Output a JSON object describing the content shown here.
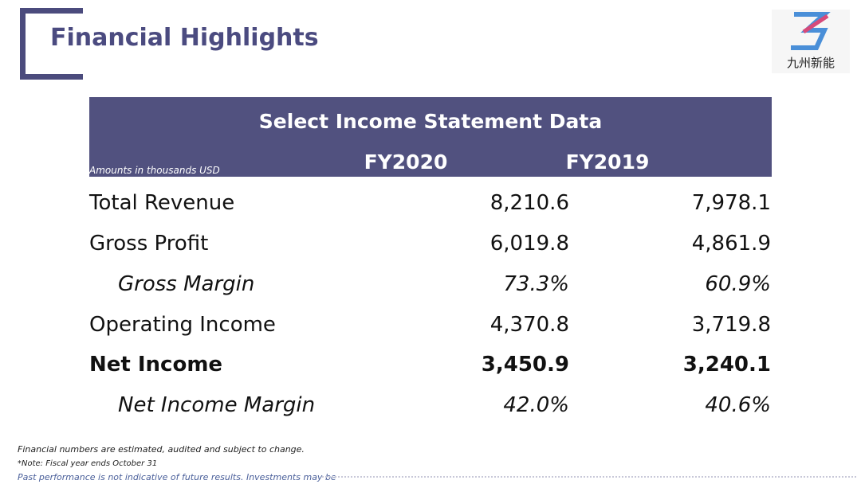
{
  "header": {
    "title": "Financial Highlights",
    "logo_text": "九州新能"
  },
  "table": {
    "title": "Select Income Statement Data",
    "units_note": "Amounts in thousands USD",
    "columns": [
      "FY2020",
      "FY2019"
    ],
    "rows": [
      [
        "Total Revenue",
        "8,210.6",
        "7,978.1"
      ],
      [
        "Gross Profit",
        "6,019.8",
        "4,861.9"
      ],
      [
        "Gross Margin",
        "73.3%",
        "60.9%"
      ],
      [
        "Operating Income",
        "4,370.8",
        "3,719.8"
      ],
      [
        "Net Income",
        "3,450.9",
        "3,240.1"
      ],
      [
        "Net Income Margin",
        "42.0%",
        "40.6%"
      ]
    ]
  },
  "footer": {
    "notes": [
      "Financial numbers are estimated, audited and subject to change.",
      "*Note: Fiscal year ends October 31",
      "Past performance is not indicative of future results. Investments may be"
    ]
  }
}
